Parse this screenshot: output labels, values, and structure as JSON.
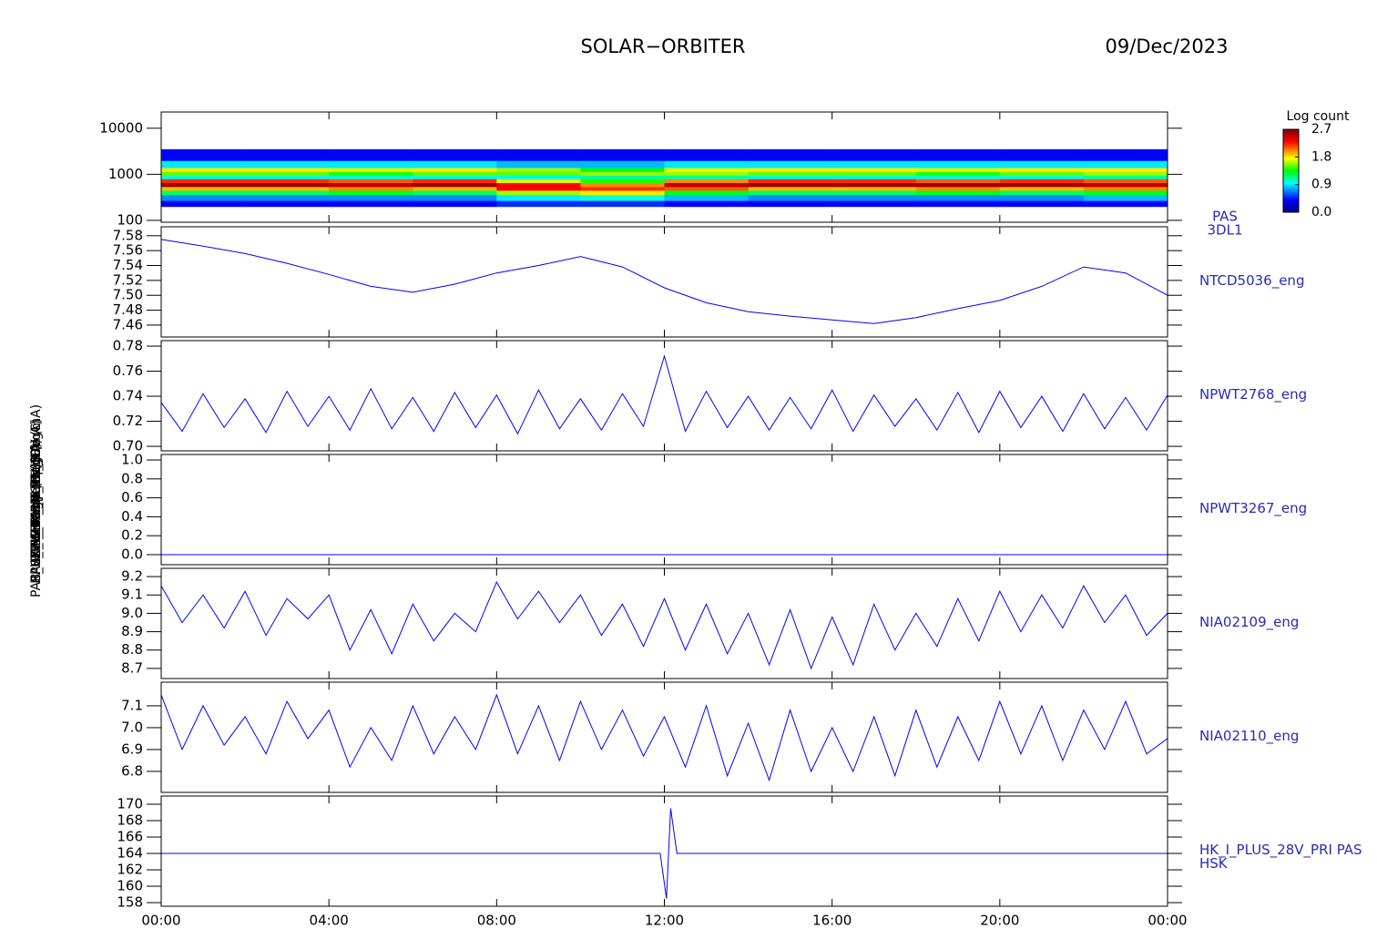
{
  "title": "SOLAR−ORBITER",
  "date": "09/Dec/2023",
  "chart_data": [
    {
      "type": "heatmap",
      "log": true,
      "xlim": [
        0,
        24
      ],
      "ylim": [
        91,
        22500
      ],
      "yticks": [
        100,
        1000,
        10000
      ],
      "right_label": [
        "PAS",
        "3DL1"
      ],
      "y_label": "Energy (eV)",
      "x_edges": [
        0,
        2,
        4,
        6,
        8,
        10,
        12,
        14,
        16,
        18,
        20,
        22,
        24
      ],
      "y_edges": [
        200,
        270,
        360,
        450,
        540,
        660,
        800,
        960,
        1150,
        1400,
        2000,
        3500
      ],
      "z": [
        [
          0.4,
          0.7,
          1.2,
          1.9,
          2.6,
          2.2,
          1.0,
          1.5,
          1.8,
          0.9,
          0.4
        ],
        [
          0.4,
          0.7,
          1.2,
          1.9,
          2.6,
          2.2,
          1.0,
          1.5,
          1.8,
          0.9,
          0.4
        ],
        [
          0.4,
          0.7,
          1.3,
          2.0,
          2.5,
          2.1,
          1.0,
          1.4,
          1.7,
          0.9,
          0.4
        ],
        [
          0.4,
          0.7,
          1.2,
          1.9,
          2.6,
          2.2,
          1.0,
          1.5,
          1.8,
          0.9,
          0.4
        ],
        [
          0.5,
          0.9,
          1.6,
          2.3,
          2.3,
          1.7,
          1.0,
          1.5,
          1.6,
          0.8,
          0.4
        ],
        [
          0.5,
          1.0,
          1.8,
          2.2,
          2.0,
          1.4,
          1.1,
          1.6,
          1.3,
          0.8,
          0.4
        ],
        [
          0.4,
          0.8,
          1.3,
          2.1,
          2.5,
          2.0,
          1.1,
          1.6,
          1.7,
          0.9,
          0.4
        ],
        [
          0.4,
          0.7,
          1.2,
          1.9,
          2.6,
          2.2,
          1.0,
          1.5,
          1.8,
          0.9,
          0.4
        ],
        [
          0.4,
          0.7,
          1.2,
          1.9,
          2.6,
          2.2,
          1.0,
          1.5,
          1.8,
          0.9,
          0.4
        ],
        [
          0.4,
          0.7,
          1.3,
          2.0,
          2.6,
          2.1,
          1.0,
          1.4,
          1.7,
          0.9,
          0.4
        ],
        [
          0.4,
          0.7,
          1.2,
          1.9,
          2.6,
          2.2,
          1.0,
          1.5,
          1.8,
          0.9,
          0.4
        ],
        [
          0.4,
          0.8,
          1.3,
          2.0,
          2.5,
          2.1,
          1.1,
          1.6,
          1.8,
          0.9,
          0.4
        ]
      ],
      "colorbar_label": "Log count",
      "clim": [
        0,
        2.7
      ],
      "cticks": [
        {
          "value": 0,
          "label": "0.0"
        },
        0.9,
        1.8,
        2.7
      ]
    },
    {
      "type": "line",
      "xlim": [
        0,
        24
      ],
      "ylim": [
        7.444,
        7.592
      ],
      "color": "#0000ff",
      "yticks": [
        7.46,
        7.48,
        {
          "value": 7.5,
          "label": "7.50"
        },
        7.52,
        7.54,
        7.56,
        7.58
      ],
      "right_label": [
        "NTCD5036_eng"
      ],
      "y_label": "EAS Temp (DegC)",
      "x": [
        0,
        1,
        2,
        3,
        4,
        5,
        6,
        7,
        8,
        9,
        10,
        11,
        12,
        13,
        14,
        15,
        16,
        17,
        18,
        19,
        20,
        21,
        22,
        23,
        24
      ],
      "values": [
        7.575,
        7.566,
        7.556,
        7.543,
        7.528,
        7.512,
        7.504,
        7.515,
        7.53,
        7.54,
        7.552,
        7.538,
        7.51,
        7.49,
        7.478,
        7.472,
        7.467,
        7.462,
        7.47,
        7.482,
        7.493,
        7.512,
        7.538,
        7.53,
        7.5
      ]
    },
    {
      "type": "line",
      "xlim": [
        0,
        24
      ],
      "ylim": [
        0.6964,
        0.7844
      ],
      "color": "#0000ff",
      "yticks": [
        {
          "value": 0.7,
          "label": "0.70"
        },
        0.72,
        0.74,
        0.76,
        0.78
      ],
      "right_label": [
        "NPWT2768_eng"
      ],
      "y_label": "RPW Temp (DegC)",
      "x": [
        0,
        0.5,
        1,
        1.5,
        2,
        2.5,
        3,
        3.5,
        4,
        4.5,
        5,
        5.5,
        6,
        6.5,
        7,
        7.5,
        8,
        8.5,
        9,
        9.5,
        10,
        10.5,
        11,
        11.5,
        12,
        12.5,
        13,
        13.5,
        14,
        14.5,
        15,
        15.5,
        16,
        16.5,
        17,
        17.5,
        18,
        18.5,
        19,
        19.5,
        20,
        20.5,
        21,
        21.5,
        22,
        22.5,
        23,
        23.5,
        24
      ],
      "values": [
        0.735,
        0.712,
        0.742,
        0.715,
        0.738,
        0.711,
        0.744,
        0.716,
        0.74,
        0.713,
        0.746,
        0.714,
        0.739,
        0.712,
        0.743,
        0.715,
        0.741,
        0.71,
        0.745,
        0.714,
        0.738,
        0.713,
        0.742,
        0.716,
        0.772,
        0.712,
        0.744,
        0.715,
        0.74,
        0.713,
        0.739,
        0.714,
        0.745,
        0.712,
        0.741,
        0.716,
        0.738,
        0.713,
        0.743,
        0.711,
        0.744,
        0.715,
        0.74,
        0.712,
        0.742,
        0.714,
        0.739,
        0.713,
        0.741
      ]
    },
    {
      "type": "line",
      "xlim": [
        0,
        24
      ],
      "ylim": [
        -0.106,
        1.058
      ],
      "color": "#0000ff",
      "yticks": [
        {
          "value": 0,
          "label": "0.0"
        },
        0.2,
        0.4,
        0.6,
        0.8,
        {
          "value": 1,
          "label": "1.0"
        }
      ],
      "right_label": [
        "NPWT3267_eng"
      ],
      "y_label": "RPW THERM Temp (DegC)",
      "x": [
        0,
        24
      ],
      "values": [
        0,
        0
      ]
    },
    {
      "type": "line",
      "xlim": [
        0,
        24
      ],
      "ylim": [
        8.645,
        9.245
      ],
      "color": "#0000ff",
      "yticks": [
        8.7,
        8.8,
        8.9,
        {
          "value": 9,
          "label": "9.0"
        },
        9.1,
        9.2
      ],
      "right_label": [
        "NIA02109_eng"
      ],
      "y_label": "PAS_HK_IMON (mA)",
      "x": [
        0,
        0.5,
        1,
        1.5,
        2,
        2.5,
        3,
        3.5,
        4,
        4.5,
        5,
        5.5,
        6,
        6.5,
        7,
        7.5,
        8,
        8.5,
        9,
        9.5,
        10,
        10.5,
        11,
        11.5,
        12,
        12.5,
        13,
        13.5,
        14,
        14.5,
        15,
        15.5,
        16,
        16.5,
        17,
        17.5,
        18,
        18.5,
        19,
        19.5,
        20,
        20.5,
        21,
        21.5,
        22,
        22.5,
        23,
        23.5,
        24
      ],
      "values": [
        9.15,
        8.95,
        9.1,
        8.92,
        9.12,
        8.88,
        9.08,
        8.97,
        9.1,
        8.8,
        9.02,
        8.78,
        9.05,
        8.85,
        9.0,
        8.9,
        9.17,
        8.97,
        9.12,
        8.95,
        9.1,
        8.88,
        9.05,
        8.82,
        9.08,
        8.8,
        9.05,
        8.78,
        9.0,
        8.72,
        9.02,
        8.7,
        8.98,
        8.72,
        9.05,
        8.8,
        9.0,
        8.82,
        9.08,
        8.85,
        9.12,
        8.9,
        9.1,
        8.92,
        9.15,
        8.95,
        9.1,
        8.88,
        9.0
      ]
    },
    {
      "type": "line",
      "xlim": [
        0,
        24
      ],
      "ylim": [
        6.704,
        7.208
      ],
      "color": "#0000ff",
      "yticks": [
        6.8,
        6.9,
        {
          "value": 7,
          "label": "7.0"
        },
        7.1
      ],
      "right_label": [
        "NIA02110_eng"
      ],
      "y_label": "PAS_HK_IMON_PLUS (mA)",
      "x": [
        0,
        0.5,
        1,
        1.5,
        2,
        2.5,
        3,
        3.5,
        4,
        4.5,
        5,
        5.5,
        6,
        6.5,
        7,
        7.5,
        8,
        8.5,
        9,
        9.5,
        10,
        10.5,
        11,
        11.5,
        12,
        12.5,
        13,
        13.5,
        14,
        14.5,
        15,
        15.5,
        16,
        16.5,
        17,
        17.5,
        18,
        18.5,
        19,
        19.5,
        20,
        20.5,
        21,
        21.5,
        22,
        22.5,
        23,
        23.5,
        24
      ],
      "values": [
        7.15,
        6.9,
        7.1,
        6.92,
        7.05,
        6.88,
        7.12,
        6.95,
        7.08,
        6.82,
        7.0,
        6.85,
        7.1,
        6.88,
        7.05,
        6.9,
        7.15,
        6.88,
        7.1,
        6.85,
        7.12,
        6.9,
        7.08,
        6.87,
        7.05,
        6.82,
        7.1,
        6.78,
        7.02,
        6.76,
        7.08,
        6.8,
        7.0,
        6.8,
        7.05,
        6.78,
        7.08,
        6.82,
        7.05,
        6.85,
        7.12,
        6.88,
        7.1,
        6.85,
        7.08,
        6.9,
        7.12,
        6.88,
        6.95
      ]
    },
    {
      "type": "line",
      "xlim": [
        0,
        24
      ],
      "ylim": [
        157.56,
        171
      ],
      "color": "#0000ff",
      "yticks": [
        158,
        160,
        162,
        164,
        166,
        168,
        170
      ],
      "right_label": [
        "HK_I_PLUS_28V_PRI PAS",
        "HSK"
      ],
      "y_label": "PAS_HK_IMON_PLUS_28V (mA)",
      "x": [
        0,
        4,
        8,
        11.9,
        12.05,
        12.15,
        12.3,
        16,
        20,
        24
      ],
      "values": [
        164,
        164,
        164,
        164,
        158.5,
        169.5,
        164,
        164,
        164,
        164
      ],
      "xticks": [
        {
          "value": 0,
          "label": "00:00"
        },
        {
          "value": 4,
          "label": "04:00"
        },
        {
          "value": 8,
          "label": "08:00"
        },
        {
          "value": 12,
          "label": "12:00"
        },
        {
          "value": 16,
          "label": "16:00"
        },
        {
          "value": 20,
          "label": "20:00"
        },
        {
          "value": 24,
          "label": "00:00"
        }
      ]
    }
  ]
}
